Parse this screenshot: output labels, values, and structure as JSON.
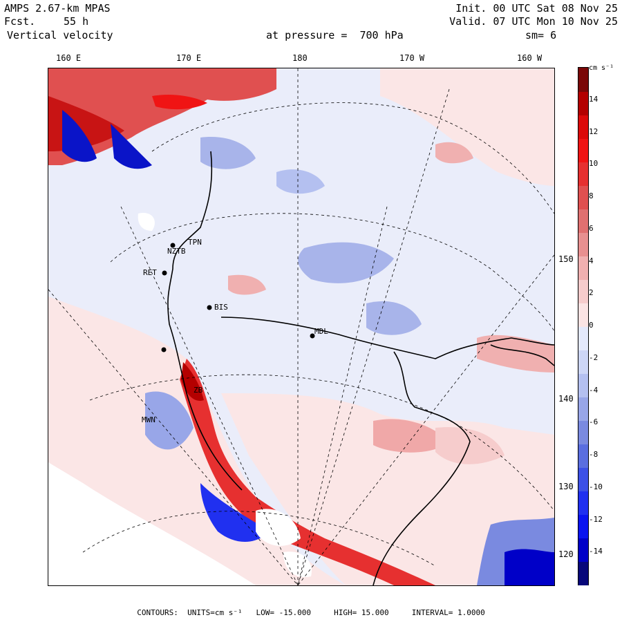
{
  "header": {
    "model": "AMPS 2.67-km MPAS",
    "forecast_label": "Fcst.",
    "forecast_value": "55 h",
    "field": "Vertical velocity",
    "init": "Init. 00 UTC Sat 08 Nov 25",
    "valid": "Valid. 07 UTC Mon 10 Nov 25",
    "pressure": "at pressure =  700 hPa",
    "smoothing": "sm= 6"
  },
  "longitude_labels": [
    "160 E",
    "170 E",
    "180",
    "170 W",
    "160 W"
  ],
  "latitude_labels": [
    "150 W",
    "140 W",
    "130 W",
    "120 W"
  ],
  "stations": [
    "TPN",
    "NZTB",
    "RET",
    "BIS",
    "MDL",
    "ZB",
    "MWN"
  ],
  "colorbar": {
    "units_label": "cm s⁻¹",
    "tick_labels": [
      "14",
      "12",
      "10",
      "8",
      "6",
      "4",
      "2",
      "0",
      "-2",
      "-4",
      "-6",
      "-8",
      "-10",
      "-12",
      "-14"
    ],
    "ticks": [
      14,
      12,
      10,
      8,
      6,
      4,
      2,
      0,
      -2,
      -4,
      -6,
      -8,
      -10,
      -12,
      -14
    ],
    "range": [
      -16,
      16
    ],
    "colors": [
      "#08087a",
      "#0000c8",
      "#0a14f0",
      "#2030f0",
      "#3c50e6",
      "#5a6ee0",
      "#7a8ae0",
      "#98a6e8",
      "#b4c0f0",
      "#cdd6f6",
      "#e4e9fb",
      "#fbe4e4",
      "#f6cccc",
      "#f0b0b0",
      "#e89090",
      "#e07070",
      "#e05050",
      "#e63030",
      "#f01414",
      "#dc0a0a",
      "#b40000",
      "#7a0808"
    ]
  },
  "footer": {
    "contours_label": "CONTOURS:",
    "units": "UNITS=cm s⁻¹",
    "low": "LOW= -15.000",
    "high": "HIGH= 15.000",
    "interval": "INTERVAL= 1.0000"
  },
  "map": {
    "sea_color": "#eaedfa",
    "ocean_pink": "#fbe6e6",
    "blue_patch": "#a8b4ea",
    "red_patch": "#f0a8a8",
    "deep_red": "#c81414",
    "deep_blue": "#0a14c8"
  }
}
